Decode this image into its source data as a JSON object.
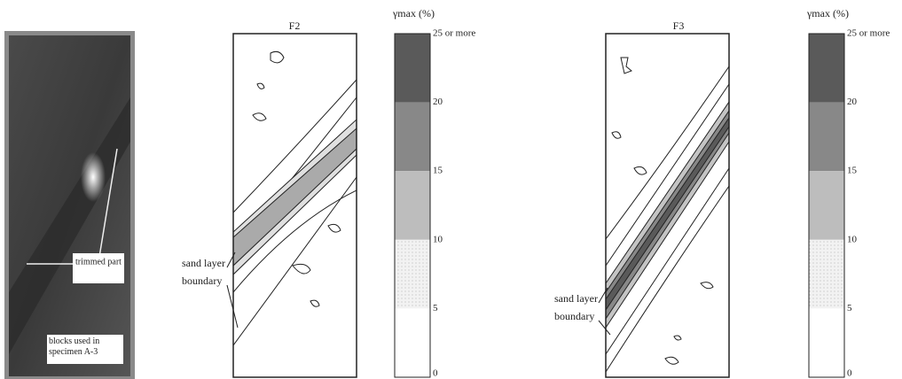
{
  "photo": {
    "labels": [
      "trimmed part",
      "blocks used in specimen A-3"
    ]
  },
  "panels": [
    {
      "title": "F2",
      "annotation": [
        "sand layer",
        "boundary"
      ]
    },
    {
      "title": "F3",
      "annotation": [
        "sand layer",
        "boundary"
      ]
    }
  ],
  "legends": [
    {
      "title": "γmax (%)",
      "labels": [
        "25 or more",
        "20",
        "15",
        "10",
        "5",
        "0"
      ]
    },
    {
      "title": "γmax (%)",
      "labels": [
        "25 or more",
        "20",
        "15",
        "10",
        "5",
        "0"
      ]
    }
  ]
}
